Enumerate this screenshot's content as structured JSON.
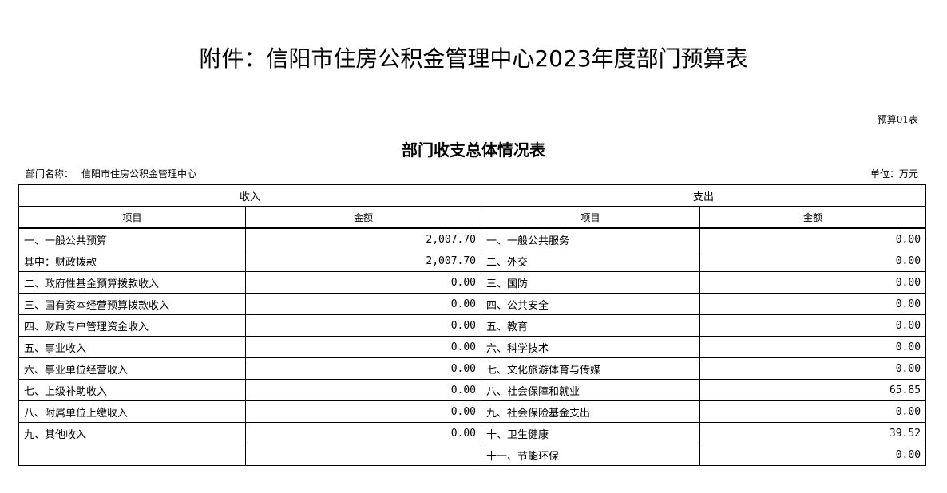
{
  "title": "附件：信阳市住房公积金管理中心2023年度部门预算表",
  "form_no": "预算01表",
  "subtitle": "部门收支总体情况表",
  "dept_label": "部门名称：",
  "dept_name": "信阳市住房公积金管理中心",
  "unit": "单位：万元",
  "headers": {
    "income": "收入",
    "expense": "支出",
    "item": "项目",
    "amount": "金额"
  },
  "rows": [
    {
      "in_item": "一、一般公共预算",
      "in_amt": "2,007.70",
      "out_item": "一、一般公共服务",
      "out_amt": "0.00"
    },
    {
      "in_item": "其中：财政拨款",
      "in_amt": "2,007.70",
      "out_item": "二、外交",
      "out_amt": "0.00"
    },
    {
      "in_item": "二、政府性基金预算拨款收入",
      "in_amt": "0.00",
      "out_item": "三、国防",
      "out_amt": "0.00"
    },
    {
      "in_item": "三、国有资本经营预算拨款收入",
      "in_amt": "0.00",
      "out_item": "四、公共安全",
      "out_amt": "0.00"
    },
    {
      "in_item": "四、财政专户管理资金收入",
      "in_amt": "0.00",
      "out_item": "五、教育",
      "out_amt": "0.00"
    },
    {
      "in_item": "五、事业收入",
      "in_amt": "0.00",
      "out_item": "六、科学技术",
      "out_amt": "0.00"
    },
    {
      "in_item": "六、事业单位经营收入",
      "in_amt": "0.00",
      "out_item": "七、文化旅游体育与传媒",
      "out_amt": "0.00"
    },
    {
      "in_item": "七、上级补助收入",
      "in_amt": "0.00",
      "out_item": "八、社会保障和就业",
      "out_amt": "65.85"
    },
    {
      "in_item": "八、附属单位上缴收入",
      "in_amt": "0.00",
      "out_item": "九、社会保险基金支出",
      "out_amt": "0.00"
    },
    {
      "in_item": "九、其他收入",
      "in_amt": "0.00",
      "out_item": "十、卫生健康",
      "out_amt": "39.52"
    },
    {
      "in_item": "",
      "in_amt": "",
      "out_item": "十一、节能环保",
      "out_amt": "0.00"
    }
  ]
}
